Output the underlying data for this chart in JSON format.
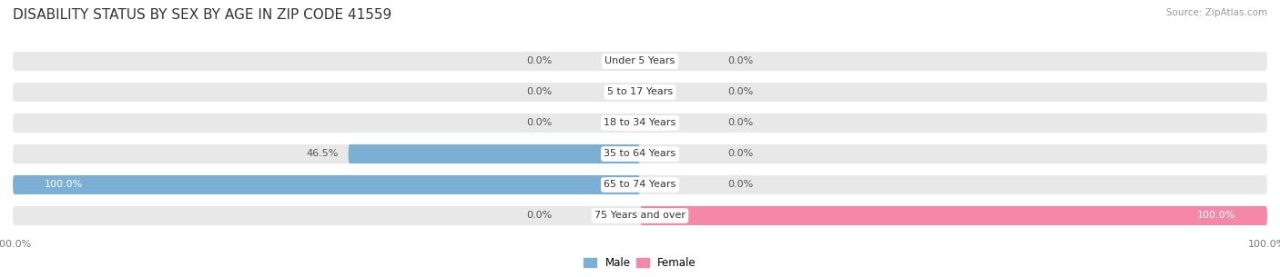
{
  "title": "DISABILITY STATUS BY SEX BY AGE IN ZIP CODE 41559",
  "source": "Source: ZipAtlas.com",
  "categories": [
    "Under 5 Years",
    "5 to 17 Years",
    "18 to 34 Years",
    "35 to 64 Years",
    "65 to 74 Years",
    "75 Years and over"
  ],
  "male_values": [
    0.0,
    0.0,
    0.0,
    46.5,
    100.0,
    0.0
  ],
  "female_values": [
    0.0,
    0.0,
    0.0,
    0.0,
    0.0,
    100.0
  ],
  "male_color": "#7bafd4",
  "female_color": "#f587a8",
  "bar_bg_color": "#e8e8e8",
  "bar_height": 0.62,
  "title_fontsize": 11,
  "label_fontsize": 8,
  "category_fontsize": 8,
  "bg_color": "#ffffff",
  "axis_label_color": "#777777",
  "text_color": "#555555"
}
